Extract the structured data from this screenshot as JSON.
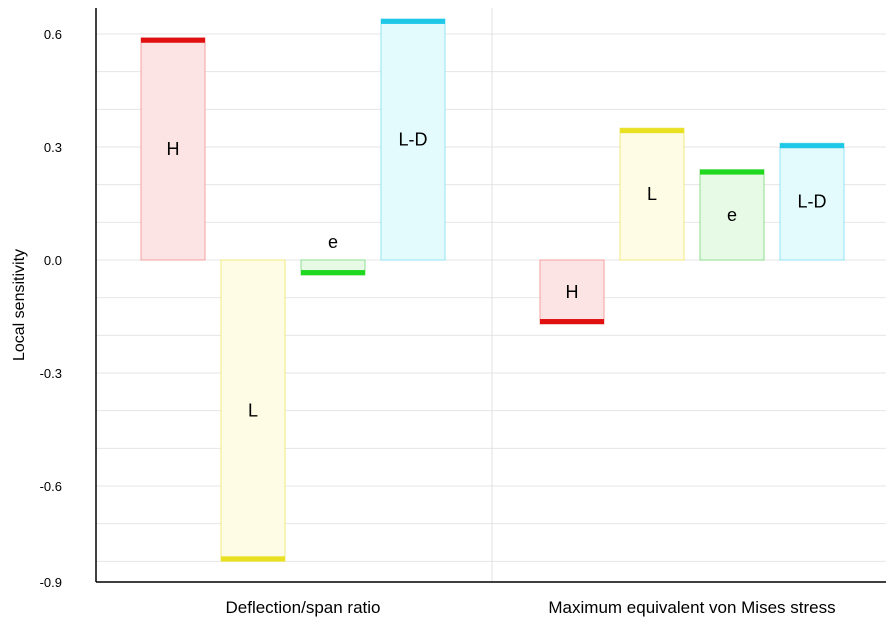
{
  "chart_data": {
    "type": "bar",
    "ylabel": "Local sensitivity",
    "ylim": [
      -0.9,
      0.65
    ],
    "yticks": [
      "0.6",
      "0.3",
      "0.0",
      "-0.3",
      "-0.6",
      "-0.9"
    ],
    "ytick_values": [
      0.6,
      0.3,
      0.0,
      -0.3,
      -0.6,
      -0.9
    ],
    "grid": true,
    "groups": [
      {
        "name": "Deflection/span ratio",
        "bars": [
          {
            "label": "H",
            "value": 0.59
          },
          {
            "label": "L",
            "value": -0.8
          },
          {
            "label": "e",
            "value": -0.04
          },
          {
            "label": "L-D",
            "value": 0.64
          }
        ]
      },
      {
        "name": "Maximum equivalent von Mises stress",
        "bars": [
          {
            "label": "H",
            "value": -0.17
          },
          {
            "label": "L",
            "value": 0.35
          },
          {
            "label": "e",
            "value": 0.24
          },
          {
            "label": "L-D",
            "value": 0.31
          }
        ]
      }
    ],
    "colors": {
      "H": {
        "fill": "#fde4e4",
        "stroke": "#f4a0a0",
        "cap": "#e01010"
      },
      "L": {
        "fill": "#fefce4",
        "stroke": "#f0ec80",
        "cap": "#e8e020"
      },
      "e": {
        "fill": "#e6fae6",
        "stroke": "#90e090",
        "cap": "#20d820"
      },
      "L-D": {
        "fill": "#e4fbfe",
        "stroke": "#90e4f0",
        "cap": "#20c8e8"
      }
    }
  }
}
